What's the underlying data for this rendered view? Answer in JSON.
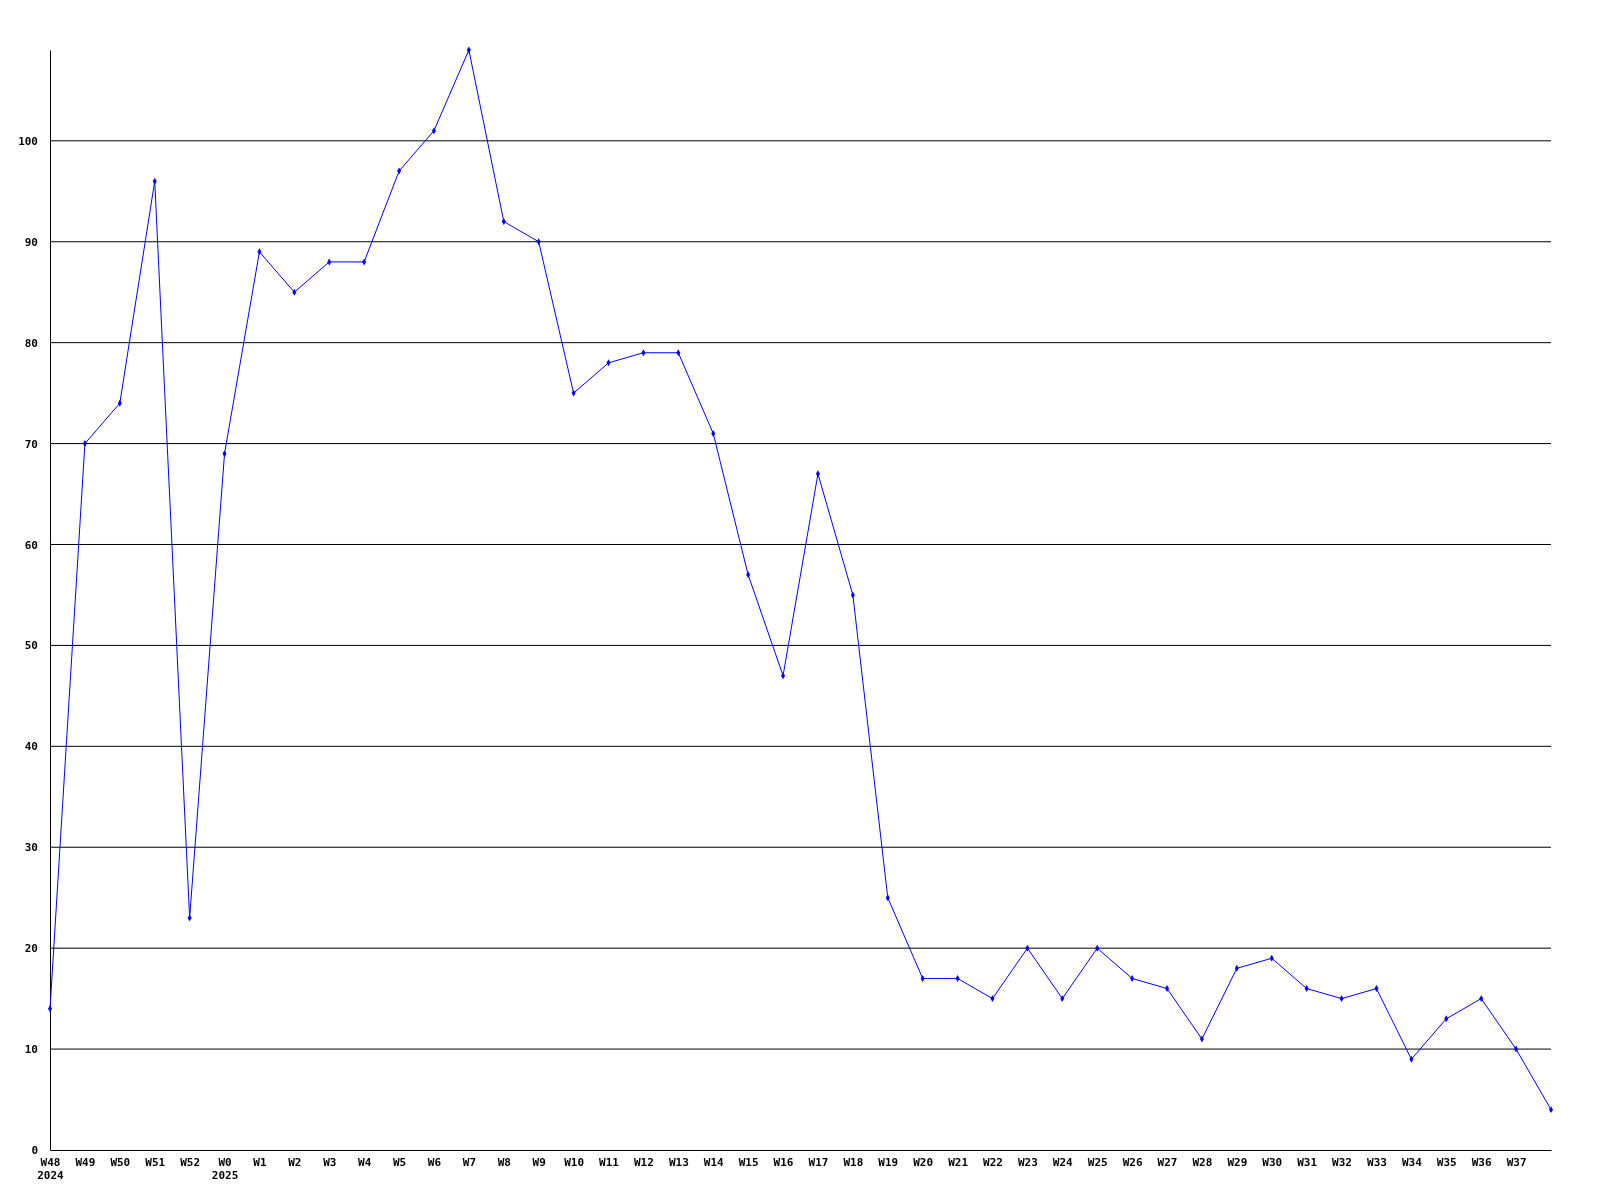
{
  "chart_data": {
    "type": "line",
    "categories": [
      "W48\n2024",
      "W49",
      "W50",
      "W51",
      "W52",
      "W0\n2025",
      "W1",
      "W2",
      "W3",
      "W4",
      "W5",
      "W6",
      "W7",
      "W8",
      "W9",
      "W10",
      "W11",
      "W12",
      "W13",
      "W14",
      "W15",
      "W16",
      "W17",
      "W18",
      "W19",
      "W20",
      "W21",
      "W22",
      "W23",
      "W24",
      "W25",
      "W26",
      "W27",
      "W28",
      "W29",
      "W30",
      "W31",
      "W32",
      "W33",
      "W34",
      "W35",
      "W36",
      "W37",
      null
    ],
    "series": [
      {
        "color": "#0000ff",
        "values": [
          14,
          70,
          74,
          96,
          23,
          69,
          89,
          85,
          88,
          88,
          97,
          101,
          109,
          92,
          90,
          75,
          78,
          79,
          79,
          71,
          57,
          47,
          67,
          55,
          25,
          17,
          17,
          15,
          20,
          15,
          20,
          17,
          16,
          11,
          18,
          19,
          16,
          15,
          16,
          9,
          13,
          15,
          10,
          4
        ]
      }
    ],
    "ylim": [
      0,
      109
    ],
    "yticks": [
      0,
      10,
      20,
      30,
      40,
      50,
      60,
      70,
      80,
      90,
      100
    ],
    "grid": "y",
    "marker": "diamond",
    "line_style": "solid"
  }
}
